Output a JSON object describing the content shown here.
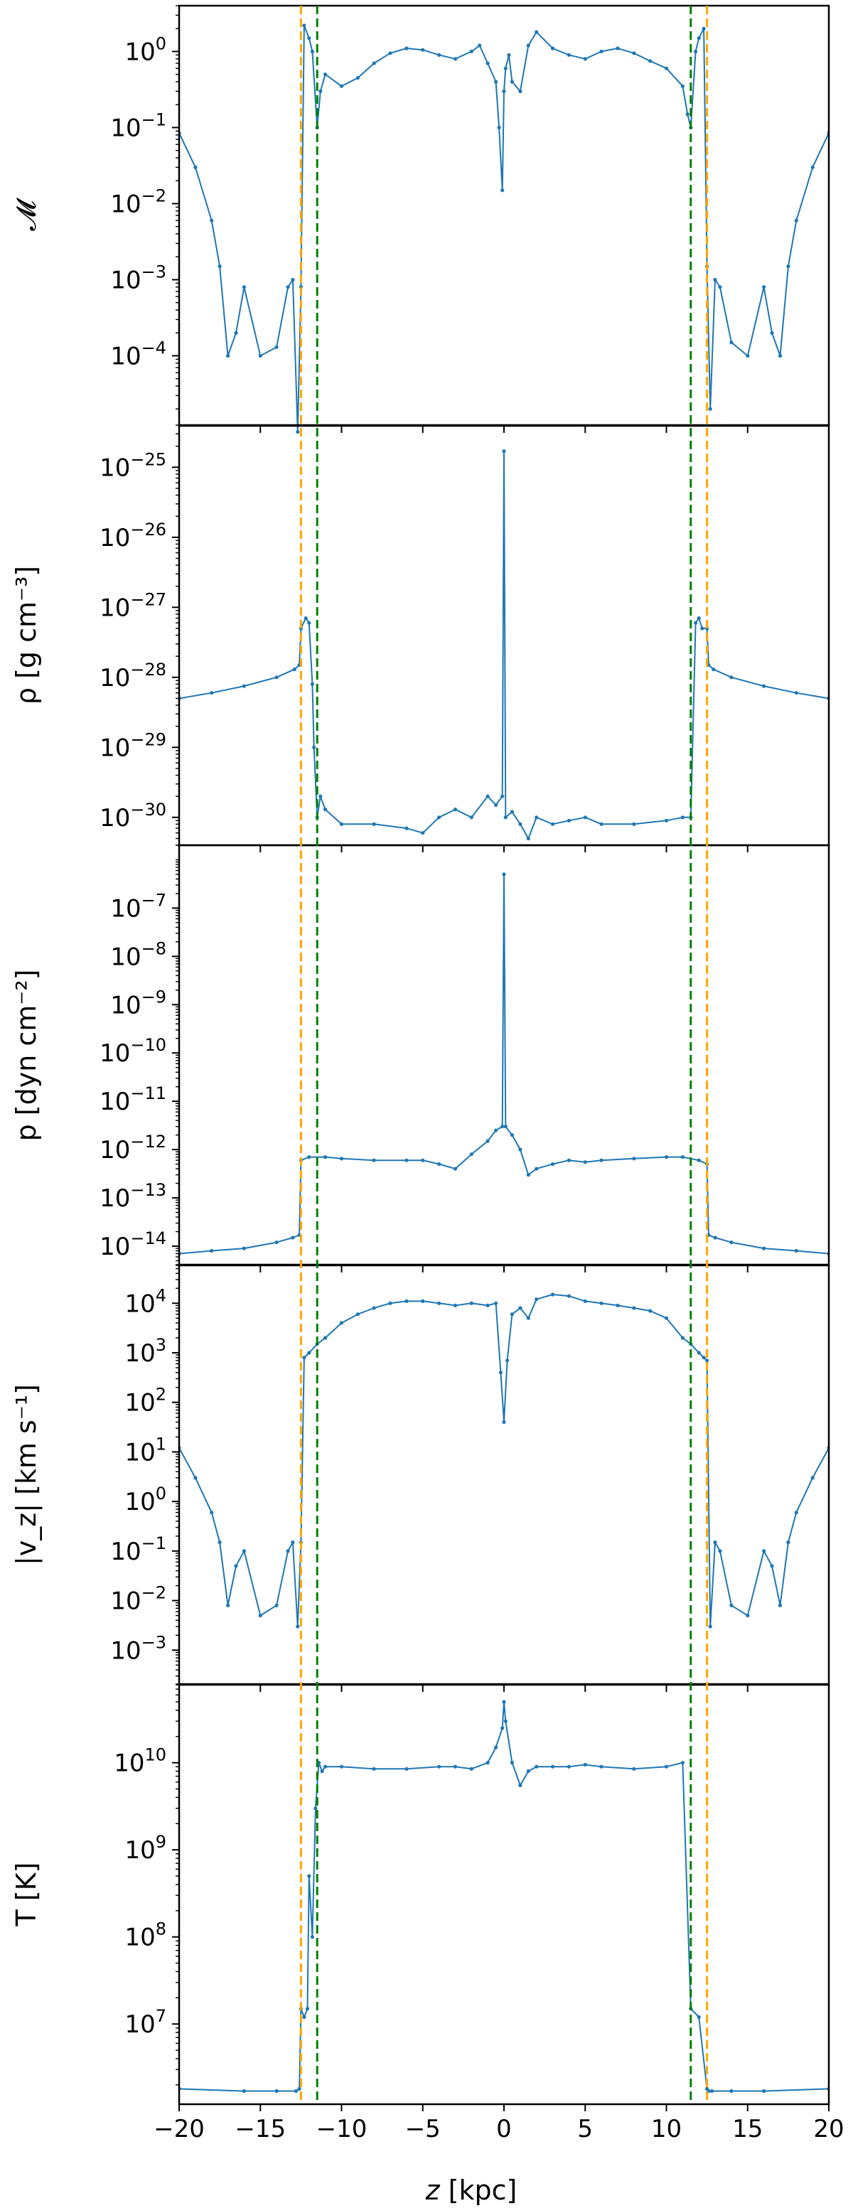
{
  "figure": {
    "xlabel_italic": "z",
    "xlabel_rest": " [kpc]",
    "xlim": [
      -20,
      20
    ],
    "xticks": [
      -20,
      -15,
      -10,
      -5,
      0,
      5,
      10,
      15,
      20
    ],
    "vlines": [
      {
        "x": -12.5,
        "color": "#ffa500",
        "style": "dashed"
      },
      {
        "x": 12.5,
        "color": "#ffa500",
        "style": "dashed"
      },
      {
        "x": -11.5,
        "color": "#008000",
        "style": "dashed"
      },
      {
        "x": 11.5,
        "color": "#008000",
        "style": "dashed"
      }
    ],
    "line_color": "#1f77b4"
  },
  "chart_data": [
    {
      "type": "line",
      "ylabel": "𝓜",
      "yscale": "log",
      "ylim": [
        1.2e-05,
        4.0
      ],
      "yticks": [
        {
          "base": "10",
          "exp": "0"
        },
        {
          "base": "10",
          "exp": "−1"
        },
        {
          "base": "10",
          "exp": "−2"
        },
        {
          "base": "10",
          "exp": "−3"
        },
        {
          "base": "10",
          "exp": "−4"
        }
      ],
      "ytick_values": [
        1,
        0.1,
        0.01,
        0.001,
        0.0001
      ],
      "x": [
        -20,
        -19,
        -18,
        -17.5,
        -17,
        -16.5,
        -16,
        -15,
        -14,
        -13.3,
        -13,
        -12.7,
        -12.5,
        -12.3,
        -12,
        -11.8,
        -11.5,
        -11.3,
        -11,
        -10,
        -9,
        -8,
        -7,
        -6,
        -5,
        -4,
        -3,
        -2,
        -1.5,
        -1,
        -0.5,
        -0.3,
        -0.1,
        0,
        0.1,
        0.3,
        0.5,
        1,
        1.5,
        2,
        3,
        4,
        5,
        6,
        7,
        8,
        9,
        10,
        11,
        11.3,
        11.5,
        11.8,
        12,
        12.3,
        12.5,
        12.7,
        13,
        13.3,
        14,
        15,
        16,
        16.5,
        17,
        17.5,
        18,
        19,
        20
      ],
      "y": [
        0.085,
        0.03,
        0.006,
        0.0015,
        0.0001,
        0.0002,
        0.0008,
        0.0001,
        0.00013,
        0.0008,
        0.001,
        1e-05,
        0.0008,
        2.2,
        1.5,
        1.0,
        0.1,
        0.3,
        0.5,
        0.35,
        0.45,
        0.7,
        0.95,
        1.1,
        1.05,
        0.9,
        0.8,
        1.0,
        1.2,
        0.7,
        0.4,
        0.1,
        0.015,
        0.3,
        0.6,
        0.9,
        0.4,
        0.3,
        1.2,
        1.8,
        1.1,
        0.9,
        0.8,
        1.0,
        1.1,
        0.95,
        0.75,
        0.6,
        0.35,
        0.15,
        0.1,
        1.0,
        1.5,
        2.0,
        0.0015,
        2e-05,
        0.001,
        0.0008,
        0.00015,
        0.0001,
        0.0008,
        0.0002,
        0.0001,
        0.0015,
        0.006,
        0.03,
        0.085
      ]
    },
    {
      "type": "line",
      "ylabel": "ρ [g cm⁻³]",
      "yscale": "log",
      "ylim": [
        4e-31,
        4e-25
      ],
      "yticks": [
        {
          "base": "10",
          "exp": "−25"
        },
        {
          "base": "10",
          "exp": "−26"
        },
        {
          "base": "10",
          "exp": "−27"
        },
        {
          "base": "10",
          "exp": "−28"
        },
        {
          "base": "10",
          "exp": "−29"
        },
        {
          "base": "10",
          "exp": "−30"
        }
      ],
      "ytick_values": [
        1e-25,
        1e-26,
        1e-27,
        1e-28,
        1e-29,
        1e-30
      ],
      "x": [
        -20,
        -18,
        -16,
        -14,
        -12.9,
        -12.6,
        -12.5,
        -12.2,
        -12,
        -11.8,
        -11.7,
        -11.5,
        -11.3,
        -11,
        -10,
        -8,
        -6,
        -5,
        -4,
        -3,
        -2,
        -1,
        -0.5,
        -0.1,
        0,
        0.1,
        0.5,
        1,
        1.5,
        2,
        3,
        4,
        5,
        6,
        8,
        10,
        11,
        11.5,
        11.8,
        12,
        12.2,
        12.5,
        12.6,
        12.9,
        14,
        16,
        18,
        20
      ],
      "y": [
        5e-29,
        6e-29,
        7.5e-29,
        1e-28,
        1.3e-28,
        1.5e-28,
        5e-28,
        7e-28,
        6e-28,
        8e-29,
        1e-29,
        1e-30,
        2e-30,
        1.3e-30,
        8e-31,
        8e-31,
        7e-31,
        6e-31,
        1e-30,
        1.3e-30,
        1e-30,
        2e-30,
        1.5e-30,
        2e-30,
        1.7e-25,
        1e-30,
        1.2e-30,
        8e-31,
        5e-31,
        1e-30,
        8e-31,
        9e-31,
        1e-30,
        8e-31,
        8e-31,
        9e-31,
        1e-30,
        1e-30,
        6e-28,
        7e-28,
        5e-28,
        5e-28,
        1.5e-28,
        1.3e-28,
        1e-28,
        7.5e-29,
        6e-29,
        5e-29
      ]
    },
    {
      "type": "line",
      "ylabel": "p [dyn cm⁻²]",
      "yscale": "log",
      "ylim": [
        4e-15,
        2e-06
      ],
      "yticks": [
        {
          "base": "10",
          "exp": "−7"
        },
        {
          "base": "10",
          "exp": "−8"
        },
        {
          "base": "10",
          "exp": "−9"
        },
        {
          "base": "10",
          "exp": "−10"
        },
        {
          "base": "10",
          "exp": "−11"
        },
        {
          "base": "10",
          "exp": "−12"
        },
        {
          "base": "10",
          "exp": "−13"
        },
        {
          "base": "10",
          "exp": "−14"
        }
      ],
      "ytick_values": [
        1e-07,
        1e-08,
        1e-09,
        1e-10,
        1e-11,
        1e-12,
        1e-13,
        1e-14
      ],
      "x": [
        -20,
        -18,
        -16,
        -14,
        -13,
        -12.6,
        -12.5,
        -12,
        -11,
        -10,
        -8,
        -6,
        -5,
        -4,
        -3,
        -2,
        -1,
        -0.5,
        -0.1,
        0,
        0.1,
        0.5,
        1,
        1.5,
        2,
        3,
        4,
        5,
        6,
        8,
        10,
        11,
        12,
        12.5,
        12.6,
        13,
        14,
        16,
        18,
        20
      ],
      "y": [
        7e-15,
        8e-15,
        9e-15,
        1.2e-14,
        1.5e-14,
        1.7e-14,
        6e-13,
        7e-13,
        7e-13,
        6.5e-13,
        6e-13,
        6e-13,
        6e-13,
        5e-13,
        4e-13,
        8e-13,
        1.5e-12,
        2.5e-12,
        3e-12,
        5e-07,
        3e-12,
        2e-12,
        1e-12,
        3e-13,
        4e-13,
        5e-13,
        6e-13,
        5.5e-13,
        6e-13,
        6.5e-13,
        7e-13,
        7e-13,
        6e-13,
        5e-13,
        1.7e-14,
        1.5e-14,
        1.2e-14,
        9e-15,
        8e-15,
        7e-15
      ]
    },
    {
      "type": "line",
      "ylabel": "|v_z| [km s⁻¹]",
      "yscale": "log",
      "ylim": [
        0.0002,
        60000.0
      ],
      "yticks": [
        {
          "base": "10",
          "exp": "4"
        },
        {
          "base": "10",
          "exp": "3"
        },
        {
          "base": "10",
          "exp": "2"
        },
        {
          "base": "10",
          "exp": "1"
        },
        {
          "base": "10",
          "exp": "0"
        },
        {
          "base": "10",
          "exp": "−1"
        },
        {
          "base": "10",
          "exp": "−2"
        },
        {
          "base": "10",
          "exp": "−3"
        }
      ],
      "ytick_values": [
        10000,
        1000,
        100,
        10,
        1,
        0.1,
        0.01,
        0.001
      ],
      "x": [
        -20,
        -19,
        -18,
        -17.5,
        -17,
        -16.5,
        -16,
        -15,
        -14,
        -13.3,
        -13,
        -12.7,
        -12.5,
        -12.3,
        -12,
        -11.5,
        -11,
        -10,
        -9,
        -8,
        -7,
        -6,
        -5,
        -4,
        -3,
        -2,
        -1,
        -0.5,
        -0.2,
        0,
        0.2,
        0.5,
        1,
        1.5,
        2,
        3,
        4,
        5,
        6,
        7,
        8,
        9,
        10,
        11,
        11.5,
        12,
        12.3,
        12.5,
        12.7,
        13,
        13.3,
        14,
        15,
        16,
        16.5,
        17,
        17.5,
        18,
        19,
        20
      ],
      "y": [
        12,
        3,
        0.6,
        0.15,
        0.008,
        0.05,
        0.1,
        0.005,
        0.008,
        0.1,
        0.15,
        0.003,
        0.15,
        800,
        1000,
        1500,
        2000,
        4000,
        6000,
        8000,
        10000,
        11000,
        11000,
        10000,
        9000,
        10000,
        9000,
        10000,
        400,
        40,
        700,
        6000,
        8000,
        5000,
        12000,
        15000,
        14000,
        11000,
        10000,
        9000,
        8000,
        7000,
        5000,
        2000,
        1500,
        1000,
        800,
        700,
        0.003,
        0.15,
        0.1,
        0.008,
        0.005,
        0.1,
        0.05,
        0.008,
        0.15,
        0.6,
        3,
        12
      ]
    },
    {
      "type": "line",
      "ylabel": "T [K]",
      "yscale": "log",
      "ylim": [
        1200000.0,
        80000000000.0
      ],
      "yticks": [
        {
          "base": "10",
          "exp": "10"
        },
        {
          "base": "10",
          "exp": "9"
        },
        {
          "base": "10",
          "exp": "8"
        },
        {
          "base": "10",
          "exp": "7"
        }
      ],
      "ytick_values": [
        10000000000,
        1000000000,
        100000000,
        10000000
      ],
      "x": [
        -20,
        -16,
        -14,
        -12.8,
        -12.6,
        -12.5,
        -12.3,
        -12.1,
        -12,
        -11.8,
        -11.6,
        -11.4,
        -11.2,
        -11,
        -10,
        -8,
        -6,
        -4,
        -3,
        -2,
        -1,
        -0.5,
        -0.1,
        0,
        0.1,
        0.5,
        1,
        1.5,
        2,
        3,
        4,
        5,
        6,
        8,
        10,
        11,
        11.5,
        12,
        12.5,
        12.6,
        12.8,
        14,
        16,
        20
      ],
      "y": [
        1800000,
        1700000,
        1700000,
        1700000,
        1800000,
        15000000,
        12000000,
        15000000,
        500000000,
        100000000,
        3000000000,
        10000000000,
        8000000000,
        9000000000,
        9000000000,
        8500000000,
        8500000000,
        9000000000,
        9000000000,
        8500000000,
        10000000000,
        15000000000,
        25000000000,
        50000000000,
        30000000000,
        10000000000,
        5500000000,
        8000000000,
        9000000000,
        9000000000,
        9000000000,
        9500000000,
        9000000000,
        8500000000,
        9000000000,
        10000000000,
        15000000,
        12000000,
        1800000,
        1700000,
        1700000,
        1700000,
        1700000,
        1800000
      ]
    }
  ]
}
